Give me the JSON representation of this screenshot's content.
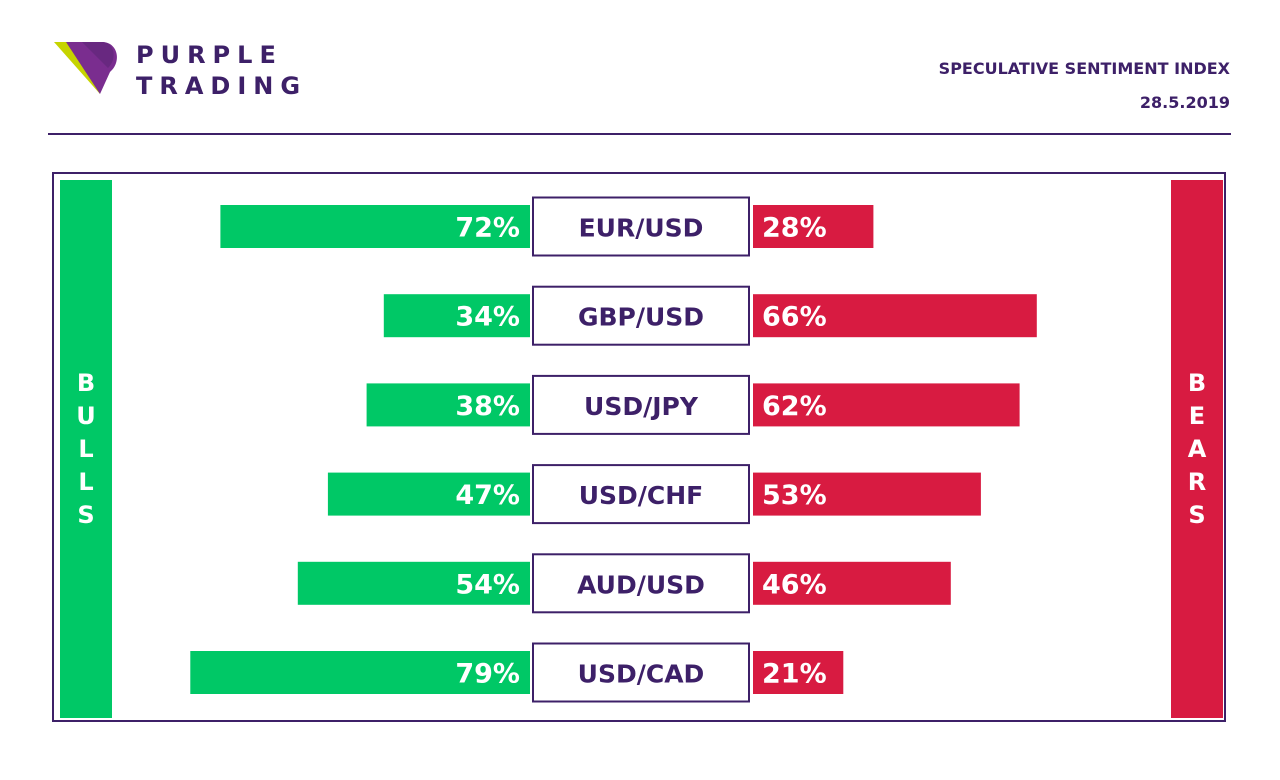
{
  "header": {
    "brand_line1": "PURPLE",
    "brand_line2": "TRADING",
    "title": "SPECULATIVE SENTIMENT INDEX",
    "date": "28.5.2019"
  },
  "side_labels": {
    "left": "BULLS",
    "right": "BEARS"
  },
  "colors": {
    "bull": "#00c866",
    "bear": "#d81b41",
    "accent": "#3d2068",
    "logo_yellow": "#c6d400",
    "logo_purple": "#7a2d8f"
  },
  "chart_data": {
    "type": "bar",
    "title": "SPECULATIVE SENTIMENT INDEX",
    "categories": [
      "EUR/USD",
      "GBP/USD",
      "USD/JPY",
      "USD/CHF",
      "AUD/USD",
      "USD/CAD"
    ],
    "series": [
      {
        "name": "BULLS",
        "values": [
          72,
          34,
          38,
          47,
          54,
          79
        ],
        "labels": [
          "72%",
          "34%",
          "38%",
          "47%",
          "54%",
          "79%"
        ]
      },
      {
        "name": "BEARS",
        "values": [
          28,
          66,
          62,
          53,
          46,
          21
        ],
        "labels": [
          "28%",
          "66%",
          "62%",
          "53%",
          "46%",
          "21%"
        ]
      }
    ]
  }
}
